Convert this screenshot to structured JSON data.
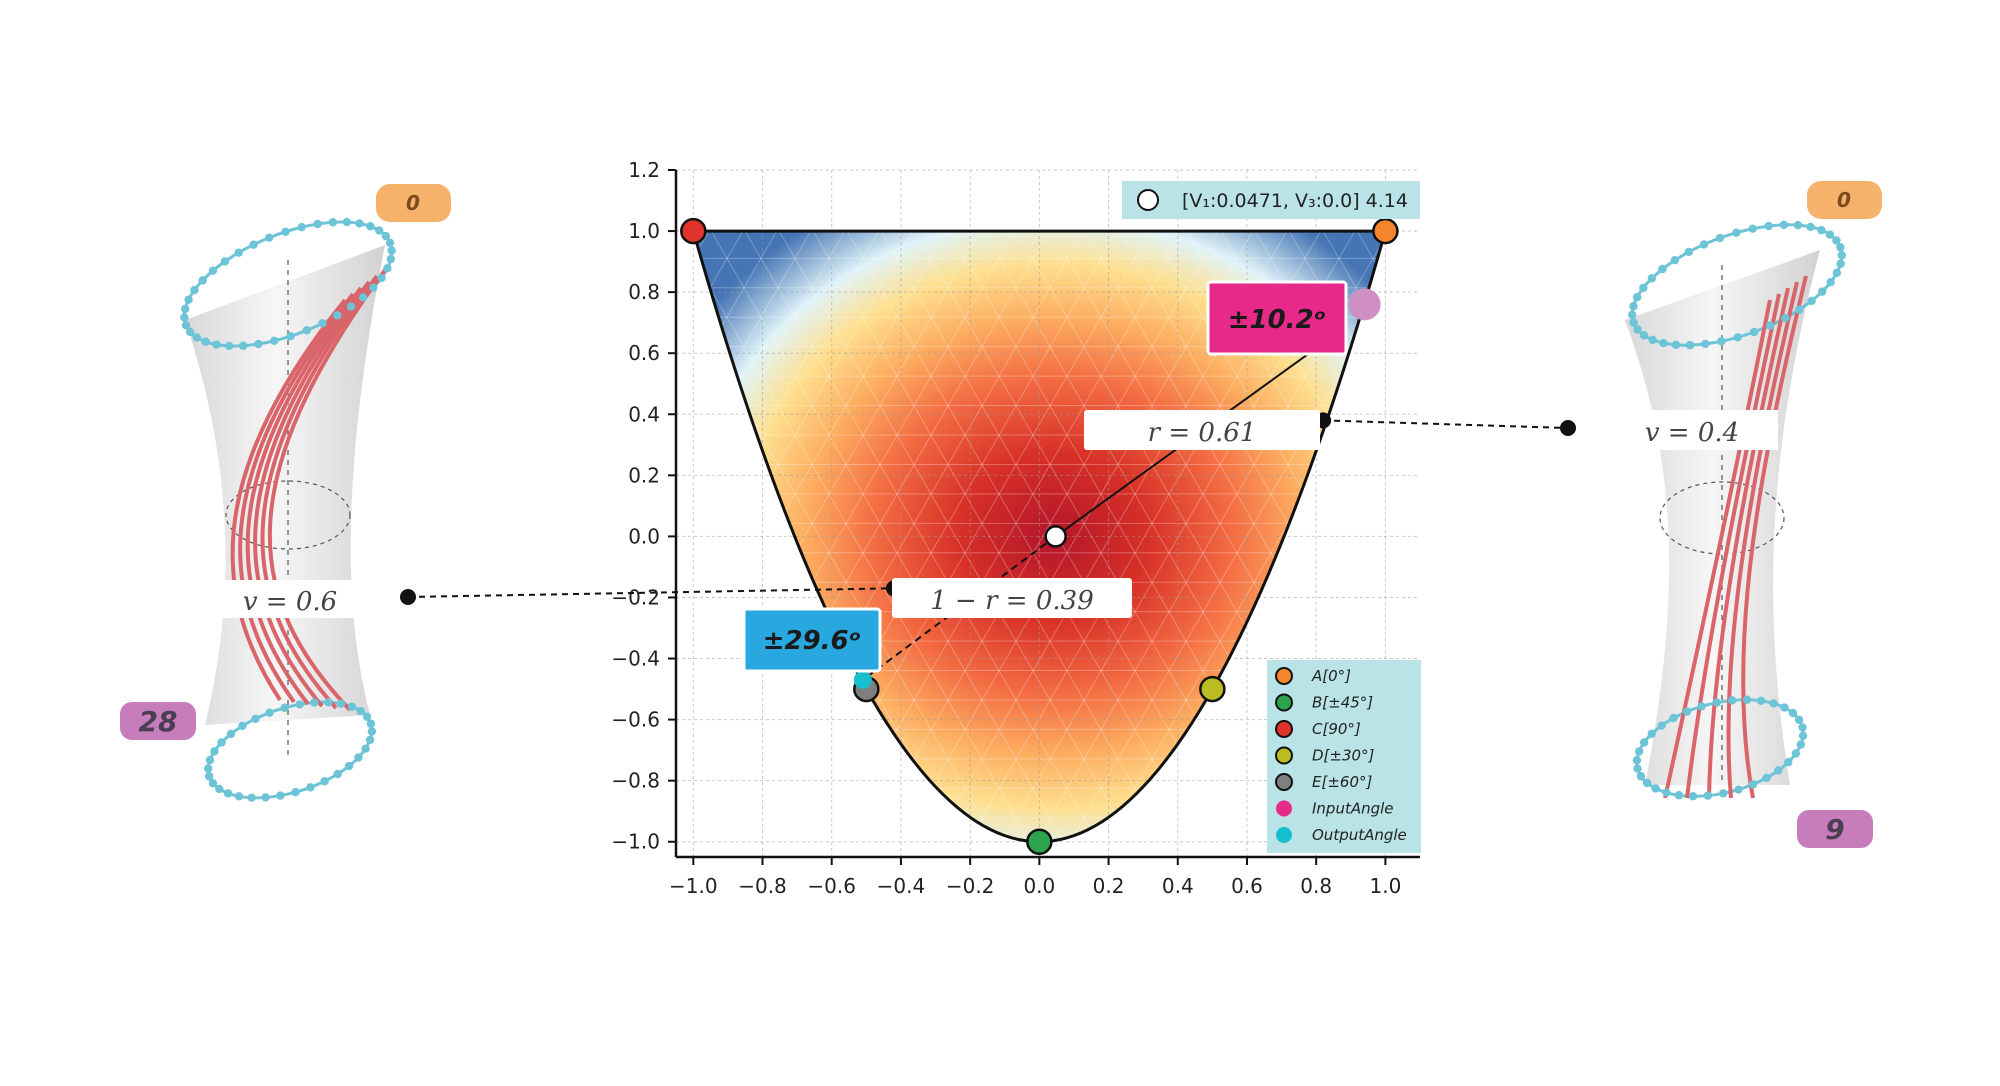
{
  "chart_data": {
    "type": "scatter",
    "title": "",
    "xlabel": "",
    "ylabel": "",
    "xlim": [
      -1.05,
      1.1
    ],
    "ylim": [
      -1.05,
      1.2
    ],
    "xticks": [
      "−1.0",
      "−0.8",
      "−0.6",
      "−0.4",
      "−0.2",
      "0.0",
      "0.2",
      "0.4",
      "0.6",
      "0.8",
      "1.0"
    ],
    "yticks": [
      "1.2",
      "1.0",
      "0.8",
      "0.6",
      "0.4",
      "0.2",
      "0.0",
      "−0.2",
      "−0.4",
      "−0.6",
      "−0.8",
      "−1.0"
    ],
    "xtick_values": [
      -1.0,
      -0.8,
      -0.6,
      -0.4,
      -0.2,
      0.0,
      0.2,
      0.4,
      0.6,
      0.8,
      1.0
    ],
    "ytick_values": [
      1.2,
      1.0,
      0.8,
      0.6,
      0.4,
      0.2,
      0.0,
      -0.2,
      -0.4,
      -0.6,
      -0.8,
      -1.0
    ],
    "grid": true,
    "legend_position": "bottom-right",
    "colormap": "Spectral (heat field inside boundary)",
    "boundary": "top edge y = 1 from x = -1 to x = 1; lower parabola y = 2x^2 - 1",
    "series": [
      {
        "name": "A[0°]",
        "color": "#f5842a",
        "points": [
          [
            1.0,
            1.0
          ]
        ]
      },
      {
        "name": "B[±45°]",
        "color": "#2ca44e",
        "points": [
          [
            0.0,
            -1.0
          ]
        ]
      },
      {
        "name": "C[90°]",
        "color": "#e0332b",
        "points": [
          [
            -1.0,
            1.0
          ]
        ]
      },
      {
        "name": "D[±30°]",
        "color": "#bcbd22",
        "points": [
          [
            0.5,
            -0.5
          ]
        ]
      },
      {
        "name": "E[±60°]",
        "color": "#7f7f7f",
        "points": [
          [
            -0.5,
            -0.5
          ]
        ]
      },
      {
        "name": "InputAngle",
        "color": "#e7298a",
        "points": [
          [
            0.94,
            0.76
          ]
        ]
      },
      {
        "name": "OutputAngle",
        "color": "#17becf",
        "points": [
          [
            -0.51,
            -0.47
          ]
        ]
      }
    ],
    "current_point": {
      "x": 0.0471,
      "y": 0.0,
      "label": "[V₁:0.0471, V₃:0.0] 4.14"
    },
    "ratio_points": [
      {
        "x": -0.42,
        "y": -0.17
      },
      {
        "x": 0.82,
        "y": 0.38
      }
    ],
    "annotations": {
      "input_angle": "±10.2ᵒ",
      "output_angle": "±29.6ᵒ",
      "r_label": "r = 0.61",
      "one_minus_r_label": "1 − r = 0.39"
    }
  },
  "left_tube": {
    "v_label": "v = 0.6",
    "top_badge": "0",
    "bottom_badge": "28"
  },
  "right_tube": {
    "v_label": "v = 0.4",
    "top_badge": "0",
    "bottom_badge": "9"
  },
  "colors": {
    "input_badge": "#e7298a",
    "output_badge": "#29a8e0",
    "legend_bg": "#b9e3e6",
    "orange_badge": "#f6b26b",
    "purple_badge": "#c77dbb",
    "fiber": "#d9646a",
    "ring_dot": "#6cc4d6"
  }
}
